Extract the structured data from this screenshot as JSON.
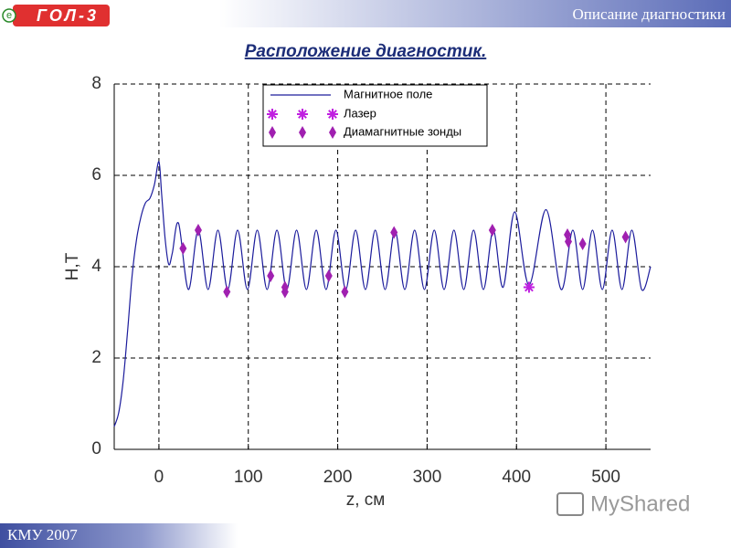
{
  "header": {
    "logo": "ГОЛ-3",
    "logo_mark": "e",
    "section": "Описание диагностики"
  },
  "footer": {
    "text": "КМУ 2007",
    "watermark": "MyShared"
  },
  "chart_data": {
    "type": "line",
    "title": "Расположение диагностик.",
    "x_label": "z, см",
    "y_label": "H,T",
    "xlim": [
      -50,
      550
    ],
    "ylim": [
      0,
      8
    ],
    "xticks": [
      0,
      100,
      200,
      300,
      400,
      500
    ],
    "yticks": [
      0,
      2,
      4,
      6,
      8
    ],
    "grid": true,
    "series": [
      {
        "name": "Магнитное поле",
        "marker": "line",
        "color": "#1c1c9c",
        "x": [
          -50,
          -45,
          -40,
          -35,
          -30,
          -25,
          -20,
          -15,
          -10,
          -5,
          0,
          3,
          7,
          11,
          15,
          22,
          33,
          44,
          55,
          66,
          77,
          88,
          99,
          110,
          121,
          132,
          143,
          154,
          165,
          176,
          187,
          198,
          209,
          220,
          231,
          242,
          253,
          264,
          275,
          286,
          297,
          308,
          319,
          330,
          341,
          352,
          363,
          374,
          385,
          398,
          414,
          433,
          450,
          463,
          474,
          485,
          496,
          507,
          518,
          529,
          540,
          550
        ],
        "values": [
          0.5,
          0.8,
          1.5,
          2.6,
          3.8,
          4.6,
          5.1,
          5.4,
          5.5,
          5.8,
          6.3,
          5.6,
          4.6,
          4.05,
          4.3,
          4.95,
          3.5,
          4.8,
          3.5,
          4.8,
          3.5,
          4.8,
          3.5,
          4.8,
          3.5,
          4.8,
          3.5,
          4.8,
          3.5,
          4.8,
          3.5,
          4.8,
          3.5,
          4.8,
          3.5,
          4.8,
          3.5,
          4.8,
          3.5,
          4.8,
          3.5,
          4.8,
          3.5,
          4.8,
          3.5,
          4.8,
          3.5,
          4.8,
          3.55,
          5.2,
          3.6,
          5.25,
          3.5,
          4.8,
          3.5,
          4.8,
          3.5,
          4.8,
          3.5,
          4.8,
          3.5,
          4.0
        ]
      },
      {
        "name": "Лазер",
        "marker": "star",
        "color": "#c020e0",
        "x": [
          414
        ],
        "values": [
          3.55
        ]
      },
      {
        "name": "Диамагнитные зонды",
        "marker": "diamond",
        "color": "#a020b0",
        "x": [
          27,
          44,
          76,
          125,
          141,
          141,
          190,
          208,
          263,
          373,
          457,
          458,
          474,
          522
        ],
        "values": [
          4.4,
          4.8,
          3.45,
          3.8,
          3.55,
          3.45,
          3.8,
          3.45,
          4.75,
          4.8,
          4.7,
          4.55,
          4.5,
          4.65
        ]
      }
    ]
  }
}
